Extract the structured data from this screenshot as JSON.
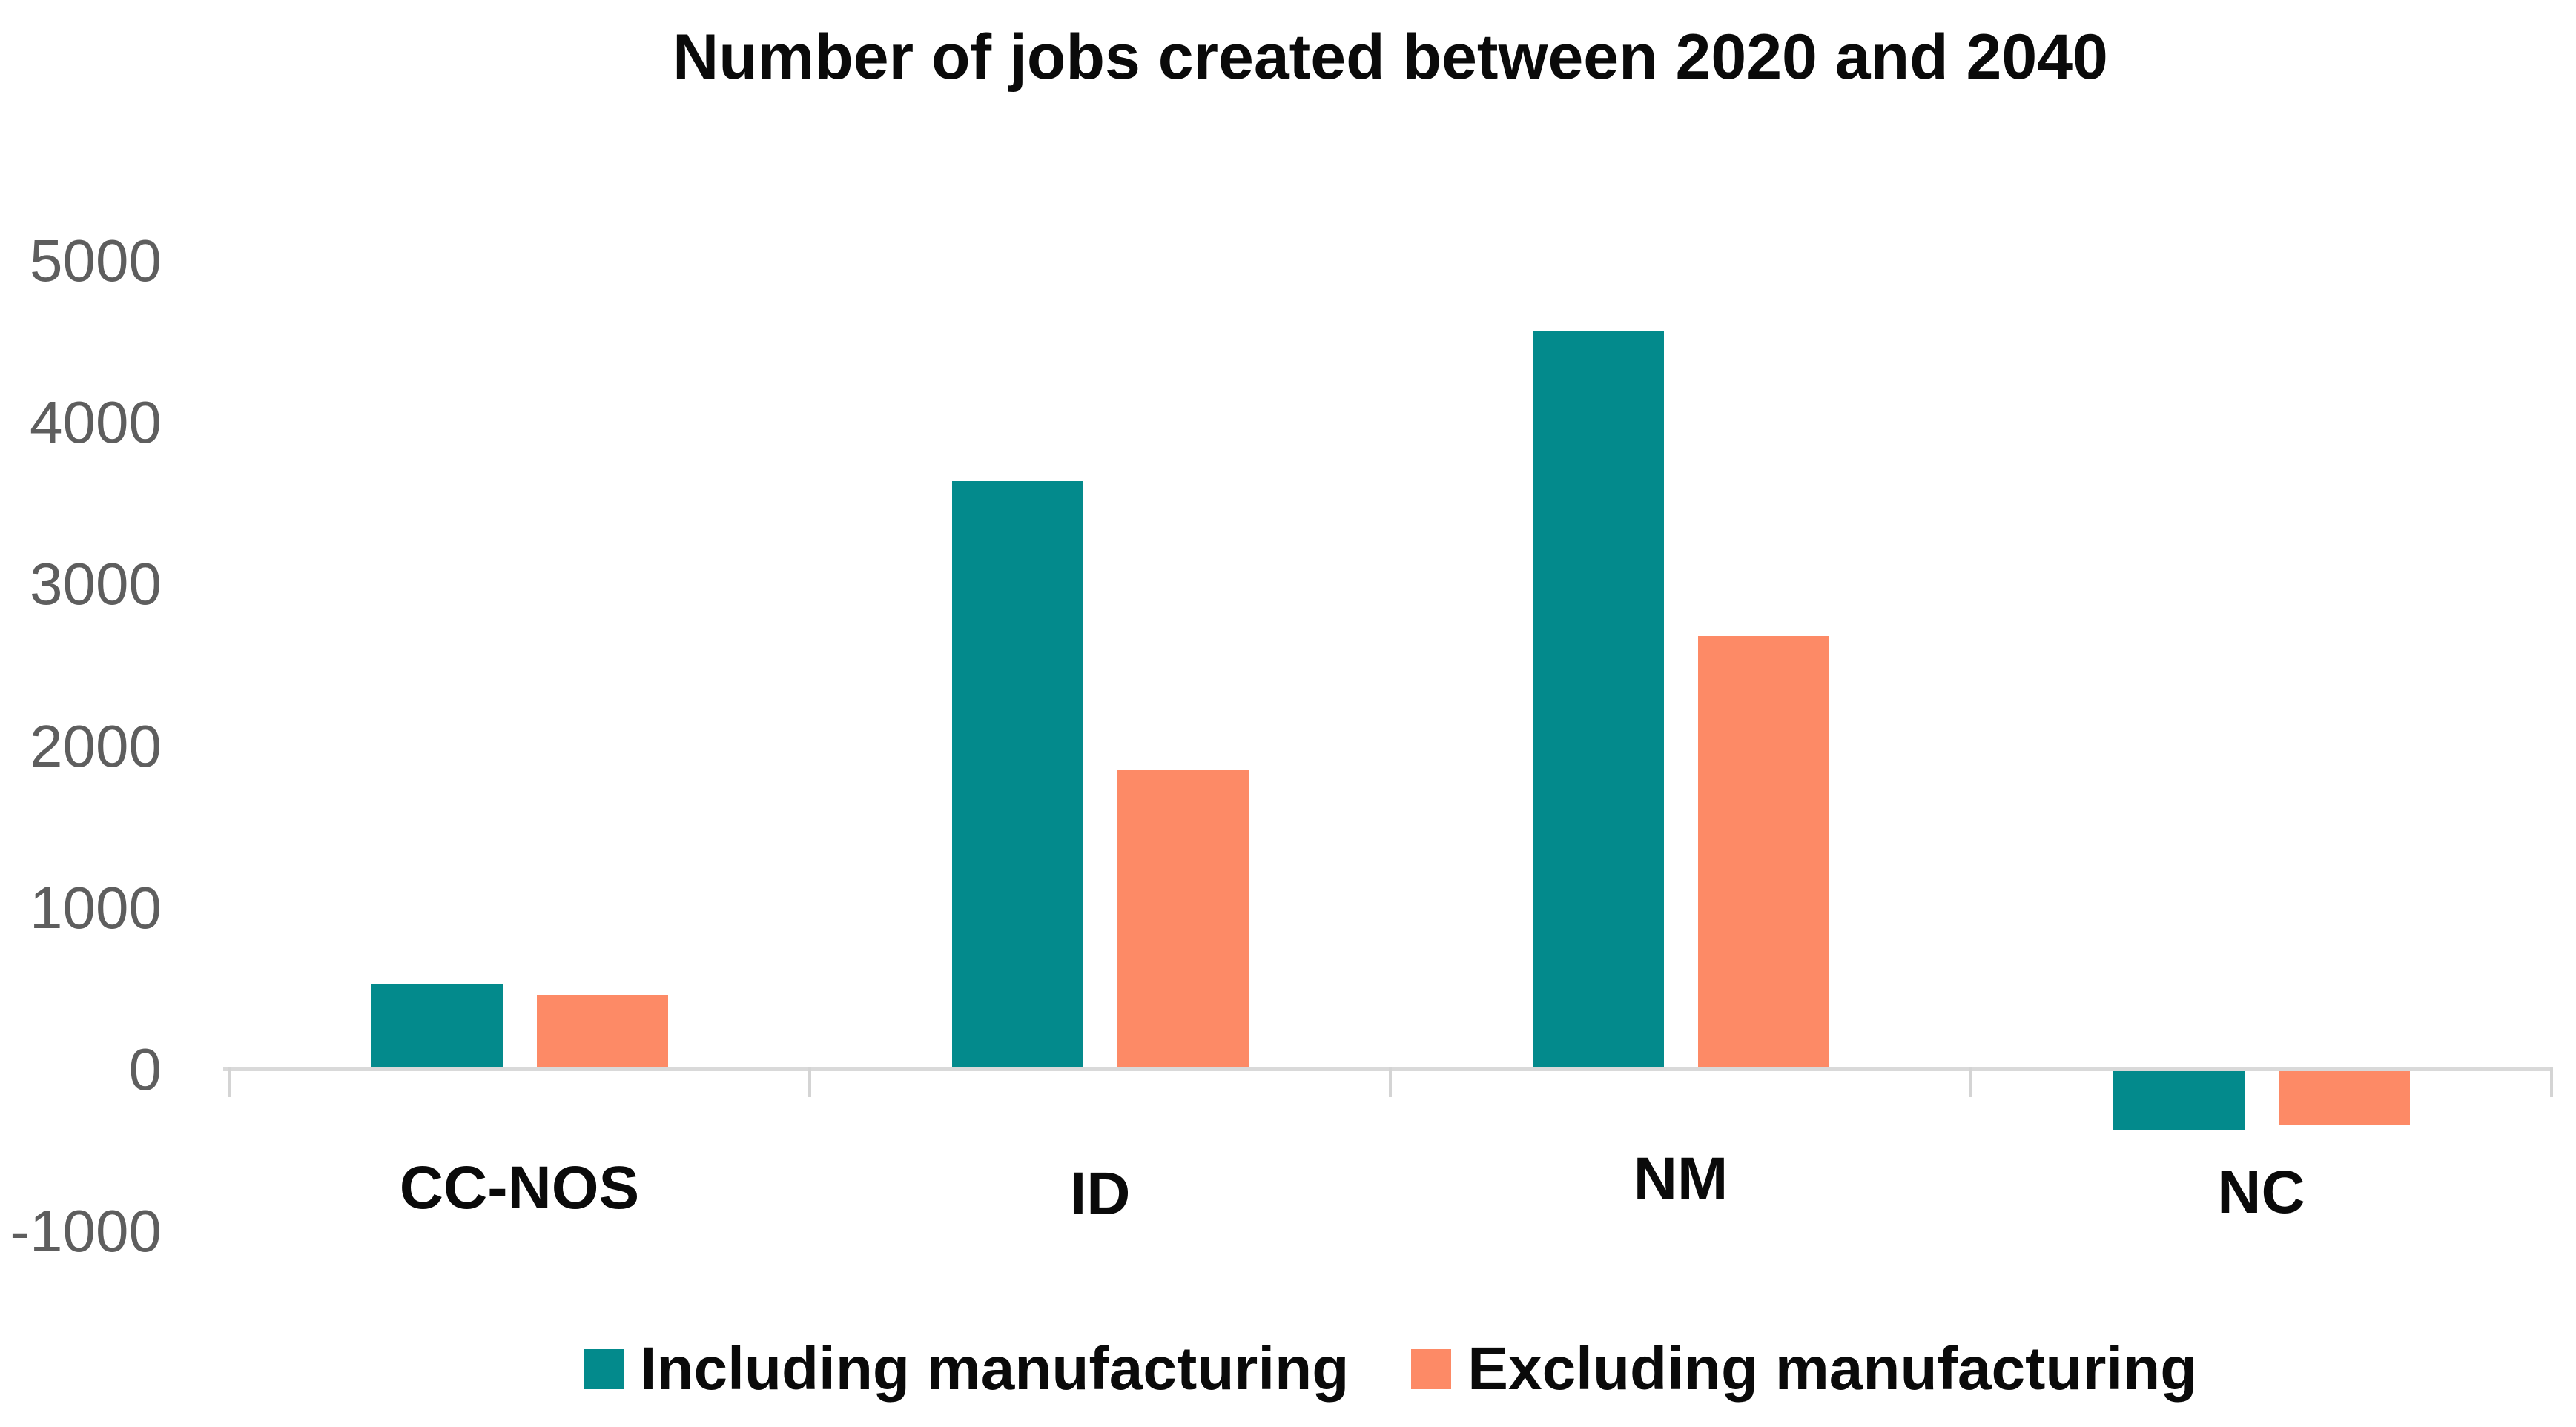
{
  "chart_data": {
    "type": "bar",
    "title": "Number of jobs created between 2020 and 2040",
    "categories": [
      "CC-NOS",
      "ID",
      "NM",
      "NC"
    ],
    "series": [
      {
        "name": "Including manufacturing",
        "color": "#038a8c",
        "values": [
          530,
          3640,
          4570,
          -370
        ]
      },
      {
        "name": "Excluding manufacturing",
        "color": "#fd8a66",
        "values": [
          460,
          1850,
          2680,
          -340
        ]
      }
    ],
    "xlabel": "",
    "ylabel": "",
    "ylim": [
      -1000,
      5000
    ],
    "yticks": [
      5000,
      4000,
      3000,
      2000,
      1000,
      0,
      -1000
    ],
    "grid": false,
    "legend_position": "bottom",
    "axis_color": "#d9d9d9",
    "tick_label_color": "#5e5e5e",
    "text_color": "#0a0a0a",
    "background_color": "#ffffff"
  }
}
